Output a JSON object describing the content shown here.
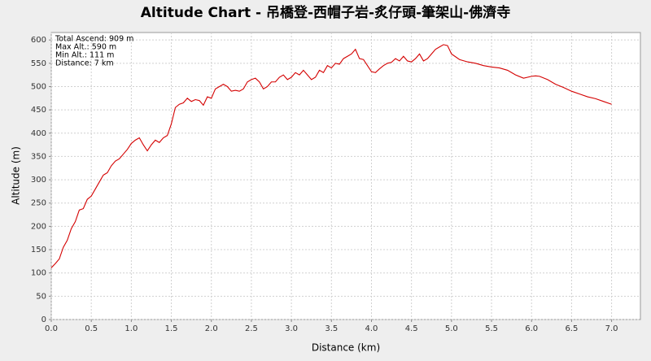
{
  "chart_data": {
    "type": "line",
    "title": "Altitude Chart - 吊橋登-西帽子岩-炙仔頭-筆架山-佛濟寺",
    "x_label": "Distance (km)",
    "y_label": "Altitude (m)",
    "annotations": [
      "Total Ascend: 909 m",
      "Max Alt.: 590 m",
      "Min Alt.: 111 m",
      "Distance: 7 km"
    ],
    "color": "#d40000",
    "grid": true,
    "xlim": [
      0,
      7.36
    ],
    "ylim": [
      0,
      616
    ],
    "xticks": [
      {
        "value": 0,
        "label": "0.0"
      },
      {
        "value": 0.5,
        "label": "0.5"
      },
      {
        "value": 1,
        "label": "1.0"
      },
      {
        "value": 1.5,
        "label": "1.5"
      },
      {
        "value": 2,
        "label": "2.0"
      },
      {
        "value": 2.5,
        "label": "2.5"
      },
      {
        "value": 3,
        "label": "3.0"
      },
      {
        "value": 3.5,
        "label": "3.5"
      },
      {
        "value": 4,
        "label": "4.0"
      },
      {
        "value": 4.5,
        "label": "4.5"
      },
      {
        "value": 5,
        "label": "5.0"
      },
      {
        "value": 5.5,
        "label": "5.5"
      },
      {
        "value": 6,
        "label": "6.0"
      },
      {
        "value": 6.5,
        "label": "6.5"
      },
      {
        "value": 7,
        "label": "7.0"
      }
    ],
    "yticks": [
      0,
      50,
      100,
      150,
      200,
      250,
      300,
      350,
      400,
      450,
      500,
      550,
      600
    ],
    "x": [
      0,
      0.05,
      0.1,
      0.15,
      0.2,
      0.25,
      0.3,
      0.35,
      0.4,
      0.45,
      0.5,
      0.55,
      0.6,
      0.65,
      0.7,
      0.75,
      0.8,
      0.85,
      0.9,
      0.95,
      1,
      1.05,
      1.1,
      1.15,
      1.2,
      1.25,
      1.3,
      1.35,
      1.4,
      1.45,
      1.5,
      1.55,
      1.6,
      1.65,
      1.7,
      1.75,
      1.8,
      1.85,
      1.9,
      1.95,
      2,
      2.05,
      2.1,
      2.15,
      2.2,
      2.25,
      2.3,
      2.35,
      2.4,
      2.45,
      2.5,
      2.55,
      2.6,
      2.65,
      2.7,
      2.75,
      2.8,
      2.85,
      2.9,
      2.95,
      3,
      3.05,
      3.1,
      3.15,
      3.2,
      3.25,
      3.3,
      3.35,
      3.4,
      3.45,
      3.5,
      3.55,
      3.6,
      3.65,
      3.7,
      3.75,
      3.8,
      3.85,
      3.9,
      3.95,
      4,
      4.05,
      4.1,
      4.15,
      4.2,
      4.25,
      4.3,
      4.35,
      4.4,
      4.45,
      4.5,
      4.55,
      4.6,
      4.65,
      4.7,
      4.75,
      4.8,
      4.85,
      4.9,
      4.95,
      5,
      5.1,
      5.2,
      5.3,
      5.4,
      5.5,
      5.6,
      5.7,
      5.8,
      5.9,
      6,
      6.05,
      6.1,
      6.2,
      6.3,
      6.4,
      6.5,
      6.6,
      6.7,
      6.8,
      6.9,
      7
    ],
    "values": [
      111,
      120,
      130,
      155,
      170,
      195,
      210,
      235,
      238,
      258,
      265,
      280,
      295,
      310,
      315,
      330,
      340,
      345,
      355,
      365,
      378,
      385,
      390,
      375,
      362,
      375,
      385,
      380,
      390,
      395,
      420,
      455,
      462,
      465,
      475,
      468,
      472,
      470,
      460,
      478,
      475,
      495,
      500,
      505,
      500,
      490,
      492,
      490,
      495,
      510,
      515,
      518,
      510,
      495,
      500,
      510,
      510,
      520,
      525,
      515,
      520,
      530,
      525,
      535,
      525,
      515,
      520,
      535,
      530,
      545,
      540,
      550,
      548,
      560,
      565,
      570,
      580,
      560,
      558,
      545,
      532,
      530,
      538,
      545,
      550,
      552,
      560,
      555,
      565,
      555,
      553,
      560,
      570,
      555,
      560,
      570,
      580,
      585,
      590,
      588,
      570,
      558,
      553,
      550,
      545,
      542,
      540,
      535,
      525,
      518,
      522,
      523,
      522,
      515,
      505,
      498,
      490,
      484,
      478,
      474,
      468,
      462
    ]
  }
}
